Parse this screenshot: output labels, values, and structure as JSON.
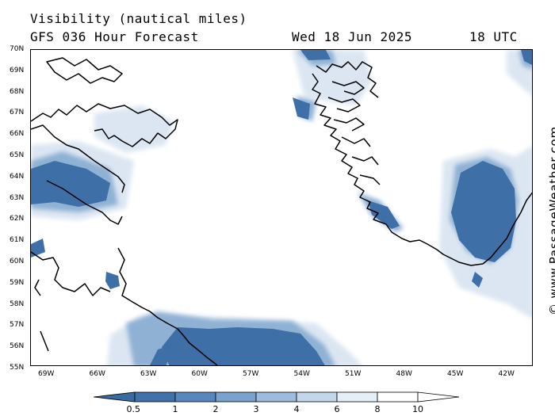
{
  "header": {
    "title": "Visibility (nautical miles)",
    "subtitle": "GFS 036 Hour Forecast",
    "date": "Wed 18 Jun 2025",
    "time": "18 UTC"
  },
  "credit": "© www.PassageWeather.com",
  "map": {
    "region": "Greenland / Labrador Sea",
    "lat_labels": [
      "70N",
      "69N",
      "68N",
      "67N",
      "66N",
      "65N",
      "64N",
      "63N",
      "62N",
      "61N",
      "60N",
      "59N",
      "58N",
      "57N",
      "56N",
      "55N"
    ],
    "lon_labels": [
      "69W",
      "66W",
      "63W",
      "60W",
      "57W",
      "54W",
      "51W",
      "48W",
      "45W",
      "42W"
    ],
    "coastline_color": "#000000"
  },
  "legend": {
    "labels": [
      "0.5",
      "1",
      "2",
      "3",
      "4",
      "6",
      "8",
      "10"
    ],
    "colors": [
      "#3a6ba0",
      "#3f72aa",
      "#5788bd",
      "#79a3cc",
      "#9dbcdb",
      "#c3d6ea",
      "#e6eef7",
      "#ffffff"
    ]
  }
}
